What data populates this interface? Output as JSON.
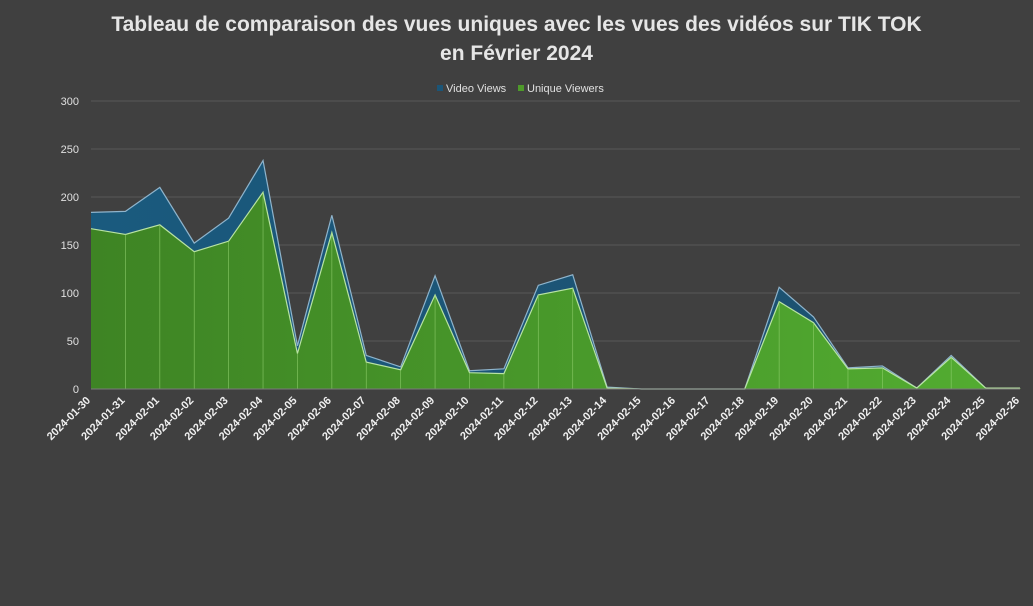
{
  "chart_data": {
    "type": "area",
    "title_lines": [
      "Tableau de comparaison des vues uniques avec les vues des vidéos sur TIK TOK",
      "en Février 2024"
    ],
    "xlabel": "",
    "ylabel": "",
    "ylim": [
      0,
      300
    ],
    "yticks": [
      0,
      50,
      100,
      150,
      200,
      250,
      300
    ],
    "grid": true,
    "legend_position": "top",
    "categories": [
      "2024-01-30",
      "2024-01-31",
      "2024-02-01",
      "2024-02-02",
      "2024-02-03",
      "2024-02-04",
      "2024-02-05",
      "2024-02-06",
      "2024-02-07",
      "2024-02-08",
      "2024-02-09",
      "2024-02-10",
      "2024-02-11",
      "2024-02-12",
      "2024-02-13",
      "2024-02-14",
      "2024-02-15",
      "2024-02-16",
      "2024-02-17",
      "2024-02-18",
      "2024-02-19",
      "2024-02-20",
      "2024-02-21",
      "2024-02-22",
      "2024-02-23",
      "2024-02-24",
      "2024-02-25",
      "2024-02-26"
    ],
    "series": [
      {
        "name": "Video Views",
        "color": "#1b5577",
        "values": [
          184,
          185,
          210,
          152,
          178,
          238,
          45,
          181,
          35,
          23,
          118,
          19,
          21,
          108,
          119,
          2,
          0,
          0,
          0,
          0,
          106,
          75,
          22,
          24,
          1,
          35,
          1,
          1
        ]
      },
      {
        "name": "Unique Viewers",
        "color": "#4e9a2a",
        "values": [
          167,
          161,
          171,
          143,
          154,
          205,
          37,
          163,
          28,
          20,
          98,
          17,
          16,
          98,
          105,
          1,
          0,
          0,
          0,
          0,
          91,
          69,
          21,
          22,
          1,
          33,
          1,
          1
        ]
      }
    ]
  }
}
